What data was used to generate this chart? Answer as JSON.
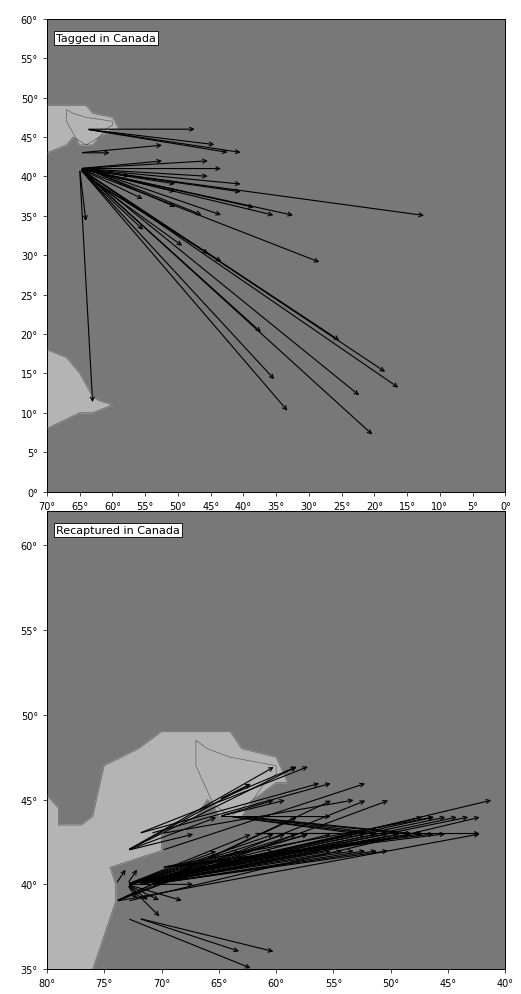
{
  "panel1": {
    "title": "Tagged in Canada",
    "xlim": [
      -70,
      0
    ],
    "ylim": [
      0,
      60
    ],
    "xticks": [
      -70,
      -65,
      -60,
      -55,
      -50,
      -45,
      -40,
      -35,
      -30,
      -25,
      -20,
      -15,
      -10,
      -5,
      0
    ],
    "yticks": [
      0,
      5,
      10,
      15,
      20,
      25,
      30,
      35,
      40,
      45,
      50,
      55,
      60
    ],
    "arrows": [
      [
        -65,
        41,
        -64,
        34
      ],
      [
        -65,
        41,
        -50,
        38
      ],
      [
        -65,
        41,
        -45,
        40
      ],
      [
        -65,
        41,
        -40,
        39
      ],
      [
        -65,
        41,
        -38,
        36
      ],
      [
        -65,
        41,
        -35,
        35
      ],
      [
        -65,
        41,
        -32,
        35
      ],
      [
        -65,
        41,
        -28,
        29
      ],
      [
        -65,
        41,
        -25,
        19
      ],
      [
        -65,
        41,
        -22,
        12
      ],
      [
        -65,
        41,
        -20,
        7
      ],
      [
        -65,
        41,
        -18,
        15
      ],
      [
        -65,
        41,
        -16,
        13
      ],
      [
        -64,
        46,
        -47,
        46
      ],
      [
        -64,
        46,
        -44,
        44
      ],
      [
        -64,
        46,
        -42,
        43
      ],
      [
        -64,
        46,
        -40,
        43
      ],
      [
        -65,
        43,
        -60,
        43
      ],
      [
        -65,
        43,
        -52,
        44
      ],
      [
        -65,
        41,
        -52,
        42
      ],
      [
        -65,
        41,
        -45,
        42
      ],
      [
        -65,
        41,
        -43,
        41
      ],
      [
        -65,
        41,
        -40,
        38
      ],
      [
        -65,
        41,
        -12,
        35
      ],
      [
        -65,
        41,
        -60,
        40
      ],
      [
        -65,
        41,
        -57,
        40
      ],
      [
        -65,
        41,
        -50,
        39
      ],
      [
        -65,
        41,
        -55,
        37
      ],
      [
        -64,
        41,
        -50,
        36
      ],
      [
        -64,
        41,
        -46,
        35
      ],
      [
        -64,
        41,
        -43,
        35
      ],
      [
        -64,
        40,
        -55,
        33
      ],
      [
        -64,
        40,
        -49,
        31
      ],
      [
        -64,
        40,
        -45,
        30
      ],
      [
        -64,
        40,
        -43,
        29
      ],
      [
        -65,
        41,
        -63,
        11
      ],
      [
        -65,
        41,
        -37,
        20
      ],
      [
        -65,
        41,
        -35,
        14
      ],
      [
        -65,
        41,
        -33,
        10
      ]
    ]
  },
  "panel2": {
    "title": "Recaptured in Canada",
    "xlim": [
      -80,
      -40
    ],
    "ylim": [
      35,
      62
    ],
    "xticks": [
      -80,
      -75,
      -70,
      -65,
      -60,
      -55,
      -50,
      -45,
      -40
    ],
    "yticks": [
      35,
      40,
      45,
      50,
      55,
      60
    ],
    "arrows": [
      [
        -73,
        40,
        -72,
        39
      ],
      [
        -73,
        40,
        -71,
        39
      ],
      [
        -73,
        40,
        -70,
        39
      ],
      [
        -73,
        40,
        -70,
        38
      ],
      [
        -73,
        40,
        -68,
        39
      ],
      [
        -73,
        40,
        -67,
        40
      ],
      [
        -73,
        40,
        -65,
        42
      ],
      [
        -73,
        40,
        -63,
        42
      ],
      [
        -73,
        40,
        -62,
        43
      ],
      [
        -73,
        40,
        -60,
        43
      ],
      [
        -73,
        40,
        -59,
        43
      ],
      [
        -73,
        40,
        -57,
        43
      ],
      [
        -73,
        40,
        -55,
        43
      ],
      [
        -73,
        40,
        -53,
        43
      ],
      [
        -73,
        40,
        -52,
        43
      ],
      [
        -73,
        40,
        -51,
        43
      ],
      [
        -73,
        40,
        -50,
        43
      ],
      [
        -73,
        40,
        -49,
        43
      ],
      [
        -73,
        40,
        -48,
        43
      ],
      [
        -73,
        40,
        -47,
        44
      ],
      [
        -73,
        40,
        -46,
        44
      ],
      [
        -73,
        40,
        -45,
        44
      ],
      [
        -72,
        40,
        -44,
        44
      ],
      [
        -72,
        40,
        -43,
        44
      ],
      [
        -72,
        40,
        -41,
        45
      ],
      [
        -73,
        39,
        -42,
        44
      ],
      [
        -74,
        39,
        -42,
        43
      ],
      [
        -74,
        39,
        -58,
        44
      ],
      [
        -74,
        39,
        -55,
        45
      ],
      [
        -74,
        39,
        -52,
        45
      ],
      [
        -74,
        39,
        -50,
        45
      ],
      [
        -73,
        42,
        -67,
        43
      ],
      [
        -73,
        42,
        -65,
        44
      ],
      [
        -73,
        42,
        -62,
        46
      ],
      [
        -73,
        42,
        -60,
        47
      ],
      [
        -73,
        42,
        -58,
        47
      ],
      [
        -72,
        43,
        -57,
        47
      ],
      [
        -72,
        43,
        -56,
        46
      ],
      [
        -71,
        43,
        -55,
        46
      ],
      [
        -70,
        43,
        -53,
        45
      ],
      [
        -70,
        42,
        -52,
        46
      ],
      [
        -72,
        40,
        -60,
        42
      ],
      [
        -72,
        40,
        -59,
        42
      ],
      [
        -72,
        40,
        -56,
        42
      ],
      [
        -72,
        40,
        -55,
        42
      ],
      [
        -72,
        40,
        -54,
        42
      ],
      [
        -72,
        40,
        -53,
        42
      ],
      [
        -71,
        40,
        -52,
        42
      ],
      [
        -71,
        40,
        -51,
        42
      ],
      [
        -71,
        40,
        -50,
        42
      ],
      [
        -71,
        40,
        -49,
        43
      ],
      [
        -71,
        40,
        -48,
        43
      ],
      [
        -70,
        41,
        -47,
        43
      ],
      [
        -70,
        41,
        -46,
        43
      ],
      [
        -70,
        41,
        -46,
        44
      ],
      [
        -69,
        41,
        -45,
        43
      ],
      [
        -73,
        38,
        -62,
        35
      ],
      [
        -72,
        38,
        -60,
        36
      ],
      [
        -72,
        38,
        -63,
        36
      ],
      [
        -65,
        45,
        -62,
        46
      ],
      [
        -65,
        45,
        -58,
        47
      ],
      [
        -65,
        44,
        -60,
        45
      ],
      [
        -65,
        44,
        -59,
        45
      ],
      [
        -65,
        44,
        -55,
        44
      ],
      [
        -64,
        44,
        -53,
        43
      ],
      [
        -64,
        44,
        -52,
        43
      ],
      [
        -63,
        44,
        -51,
        43
      ],
      [
        -63,
        44,
        -49,
        43
      ],
      [
        -63,
        44,
        -48,
        43
      ],
      [
        -62,
        43,
        -47,
        43
      ],
      [
        -74,
        40,
        -73,
        41
      ],
      [
        -73,
        40,
        -72,
        41
      ],
      [
        -72,
        40,
        -58,
        43
      ],
      [
        -72,
        40,
        -57,
        43
      ],
      [
        -62,
        43,
        -42,
        43
      ]
    ]
  },
  "ocean_color": "#787878",
  "land_color": "#b4b4b4",
  "shallow_color": "#9a9a9a",
  "coastline_color": "#505050",
  "arrow_color": "#000000",
  "label_fontsize": 7,
  "title_fontsize": 8
}
